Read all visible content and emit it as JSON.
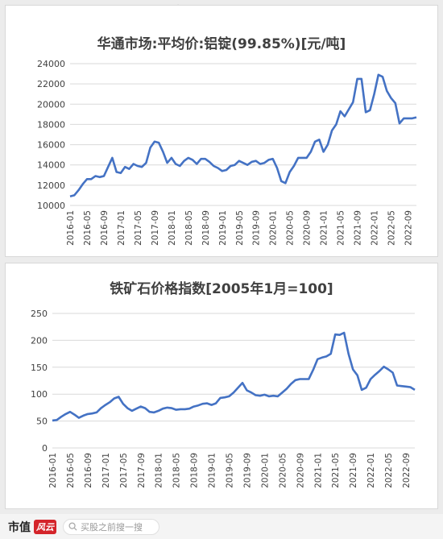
{
  "chart_data": [
    {
      "type": "line",
      "title": "华通市场:平均价:铝锭(99.85%)[元/吨]",
      "ylim": [
        10000,
        24000
      ],
      "yticks": [
        10000,
        12000,
        14000,
        16000,
        18000,
        20000,
        22000,
        24000
      ],
      "xticks": [
        "2016-01",
        "2016-05",
        "2016-09",
        "2017-01",
        "2017-05",
        "2017-09",
        "2018-01",
        "2018-05",
        "2018-09",
        "2019-01",
        "2019-05",
        "2019-09",
        "2020-01",
        "2020-05",
        "2020-09",
        "2021-01",
        "2021-05",
        "2021-09",
        "2022-01",
        "2022-05",
        "2022-09"
      ],
      "series": [
        {
          "x_start": "2016-01",
          "values": [
            10900,
            11000,
            11500,
            12100,
            12600,
            12600,
            12900,
            12800,
            12900,
            13800,
            14700,
            13300,
            13200,
            13800,
            13600,
            14100,
            13900,
            13800,
            14200,
            15700,
            16300,
            16200,
            15300,
            14200,
            14700,
            14100,
            13900,
            14400,
            14700,
            14500,
            14100,
            14600,
            14600,
            14300,
            13900,
            13700,
            13400,
            13500,
            13900,
            14000,
            14400,
            14200,
            14000,
            14300,
            14400,
            14100,
            14200,
            14500,
            14600,
            13700,
            12400,
            12200,
            13300,
            13900,
            14700,
            14700,
            14700,
            15300,
            16300,
            16500,
            15300,
            16000,
            17400,
            18000,
            19300,
            18800,
            19500,
            20200,
            22500,
            22500,
            19200,
            19400,
            21000,
            22900,
            22700,
            21300,
            20600,
            20100,
            18100,
            18600,
            18600,
            18600,
            18700
          ]
        }
      ]
    },
    {
      "type": "line",
      "title": "铁矿石价格指数[2005年1月=100]",
      "ylim": [
        0,
        250
      ],
      "yticks": [
        0,
        50,
        100,
        150,
        200,
        250
      ],
      "xticks": [
        "2016-01",
        "2016-05",
        "2016-09",
        "2017-01",
        "2017-05",
        "2017-09",
        "2018-01",
        "2018-05",
        "2018-09",
        "2019-01",
        "2019-05",
        "2019-09",
        "2020-01",
        "2020-05",
        "2020-09",
        "2021-01",
        "2021-05",
        "2021-09",
        "2022-01",
        "2022-05",
        "2022-09"
      ],
      "series": [
        {
          "x_start": "2016-01",
          "values": [
            51,
            52,
            58,
            63,
            67,
            62,
            56,
            60,
            63,
            64,
            66,
            74,
            80,
            85,
            92,
            95,
            82,
            74,
            69,
            73,
            77,
            74,
            67,
            66,
            69,
            73,
            75,
            74,
            71,
            72,
            72,
            73,
            77,
            79,
            82,
            83,
            80,
            83,
            93,
            94,
            96,
            103,
            112,
            121,
            107,
            103,
            98,
            97,
            99,
            96,
            97,
            96,
            103,
            110,
            119,
            126,
            128,
            128,
            128,
            145,
            165,
            168,
            170,
            175,
            211,
            210,
            214,
            175,
            146,
            135,
            108,
            112,
            128,
            136,
            143,
            151,
            146,
            140,
            116,
            115,
            114,
            113,
            108
          ]
        }
      ]
    }
  ],
  "watermark": "市值风云",
  "footer": {
    "brand": "市值",
    "brand_mark": "风云",
    "search_icon": "search-icon",
    "search_placeholder": "买股之前搜一搜"
  },
  "colors": {
    "line": "#4472c4",
    "grid": "#d9d9d9",
    "axis_text": "#404040"
  }
}
